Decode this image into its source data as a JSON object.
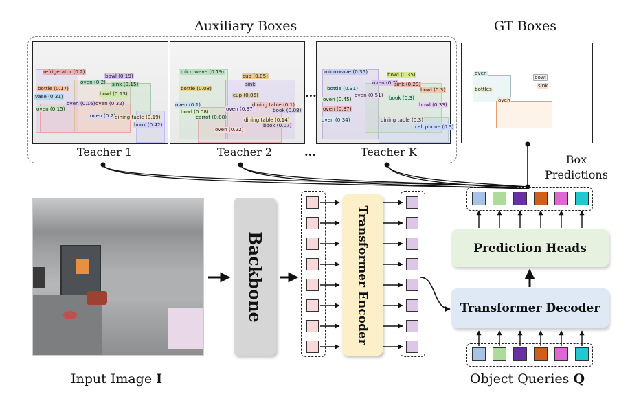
{
  "title_aux": "Auxiliary Boxes",
  "title_gt": "GT Boxes",
  "teachers": [
    {
      "label": "Teacher 1"
    },
    {
      "label": "Teacher 2"
    },
    {
      "label": "Teacher K"
    }
  ],
  "ellipsis": "...",
  "box_predictions": "Box\nPredictions",
  "input_image_label": "Input Image",
  "input_image_symbol": "I",
  "backbone_label": "Backbone",
  "encoder_label": "Transformer Encoder",
  "decoder_label": "Transformer Decoder",
  "heads_label": "Prediction Heads",
  "queries_label": "Object Queries",
  "queries_symbol": "Q",
  "query_colors": [
    "#a7c4e6",
    "#aedb9c",
    "#6a2fa0",
    "#cf5f1a",
    "#e066d6",
    "#22c8cf"
  ],
  "colors": {
    "encoder_token": "#f7d9d9",
    "encoder_out_token": "#dcc8e6",
    "encoder_box": "#fdf0c8",
    "decoder_box": "#dfe9f5",
    "heads_box": "#e6f1df",
    "backbone_box": "#d6d6d6"
  },
  "t1_dets": [
    {
      "text": "refrigerator (0.2)"
    },
    {
      "text": "bowl (0.19)"
    },
    {
      "text": "oven (0.2)"
    },
    {
      "text": "sink (0.15)"
    },
    {
      "text": "bottle (0.17)"
    },
    {
      "text": "bowl (0.13)"
    },
    {
      "text": "vase (0.31)"
    },
    {
      "text": "oven (0.16)"
    },
    {
      "text": "oven (0.32)"
    },
    {
      "text": "oven (0.15)"
    },
    {
      "text": "oven (0.2)"
    },
    {
      "text": "dining table (0.19)"
    },
    {
      "text": "book (0.42)"
    }
  ],
  "t2_dets": [
    {
      "text": "microwave (0.19)"
    },
    {
      "text": "cup (0.05)"
    },
    {
      "text": "bottle (0.08)"
    },
    {
      "text": "sink"
    },
    {
      "text": "cup (0.05)"
    },
    {
      "text": "dining table (0.1)"
    },
    {
      "text": "oven (0.1)"
    },
    {
      "text": "bowl (0.08)"
    },
    {
      "text": "oven (0.37)"
    },
    {
      "text": "book (0.08)"
    },
    {
      "text": "carrot (0.08)"
    },
    {
      "text": "dining table (0.14)"
    },
    {
      "text": "book (0.07)"
    },
    {
      "text": "oven (0.22)"
    }
  ],
  "tk_dets": [
    {
      "text": "microwave (0.35)"
    },
    {
      "text": "bowl (0.35)"
    },
    {
      "text": "oven (0.3)"
    },
    {
      "text": "sink (0.29)"
    },
    {
      "text": "bottle (0.31)"
    },
    {
      "text": "bowl (0.3)"
    },
    {
      "text": "oven (0.45)"
    },
    {
      "text": "oven (0.51)"
    },
    {
      "text": "book (0.3)"
    },
    {
      "text": "oven (0.37)"
    },
    {
      "text": "bowl (0.33)"
    },
    {
      "text": "oven (0.34)"
    },
    {
      "text": "dining table (0.3)"
    },
    {
      "text": "cell phone (0.3)"
    }
  ],
  "gt_dets": [
    {
      "text": "oven"
    },
    {
      "text": "bowl"
    },
    {
      "text": "bottles"
    },
    {
      "text": "sink"
    },
    {
      "text": "oven"
    }
  ]
}
